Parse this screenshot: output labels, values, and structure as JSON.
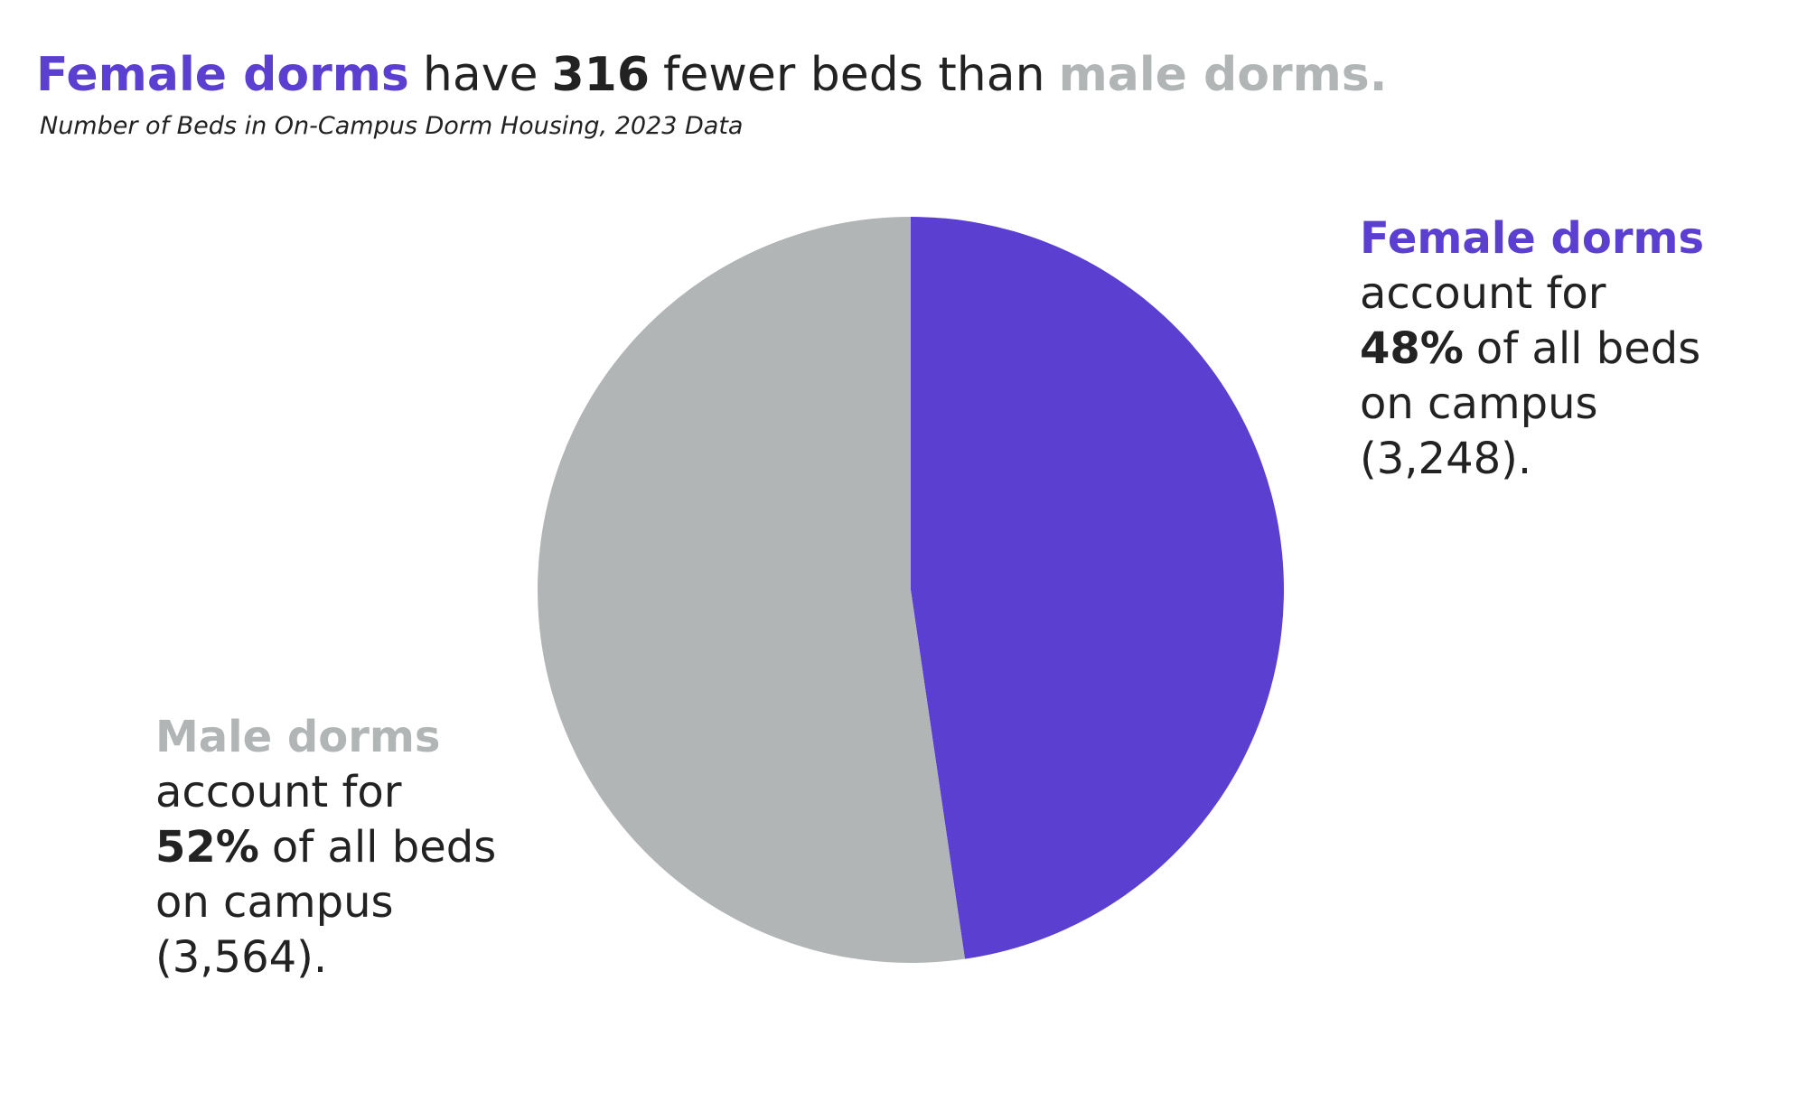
{
  "chart_data": {
    "type": "pie",
    "title_parts": [
      {
        "text": "Female dorms",
        "bold": true,
        "color": "#5b3fd0"
      },
      {
        "text": "have",
        "bold": false,
        "color": "#222222"
      },
      {
        "text": "316",
        "bold": true,
        "color": "#222222"
      },
      {
        "text": "fewer beds than",
        "bold": false,
        "color": "#222222"
      },
      {
        "text": "male dorms.",
        "bold": true,
        "color": "#b2b5b6"
      }
    ],
    "subtitle": "Number of Beds in On-Campus Dorm Housing, 2023 Data",
    "categories": [
      "Female dorms",
      "Male dorms"
    ],
    "values": [
      3248,
      3564
    ],
    "value_labels": [
      "(3,248).",
      "(3,564)."
    ],
    "percentages": [
      48,
      52
    ],
    "percentage_labels": [
      "48%",
      "52%"
    ],
    "colors": [
      "#5b3fd0",
      "#b2b5b6"
    ],
    "annotation_lines": [
      [
        "account for",
        "of all beds",
        "on campus"
      ],
      [
        "account for",
        "of all beds",
        "on campus"
      ]
    ]
  }
}
